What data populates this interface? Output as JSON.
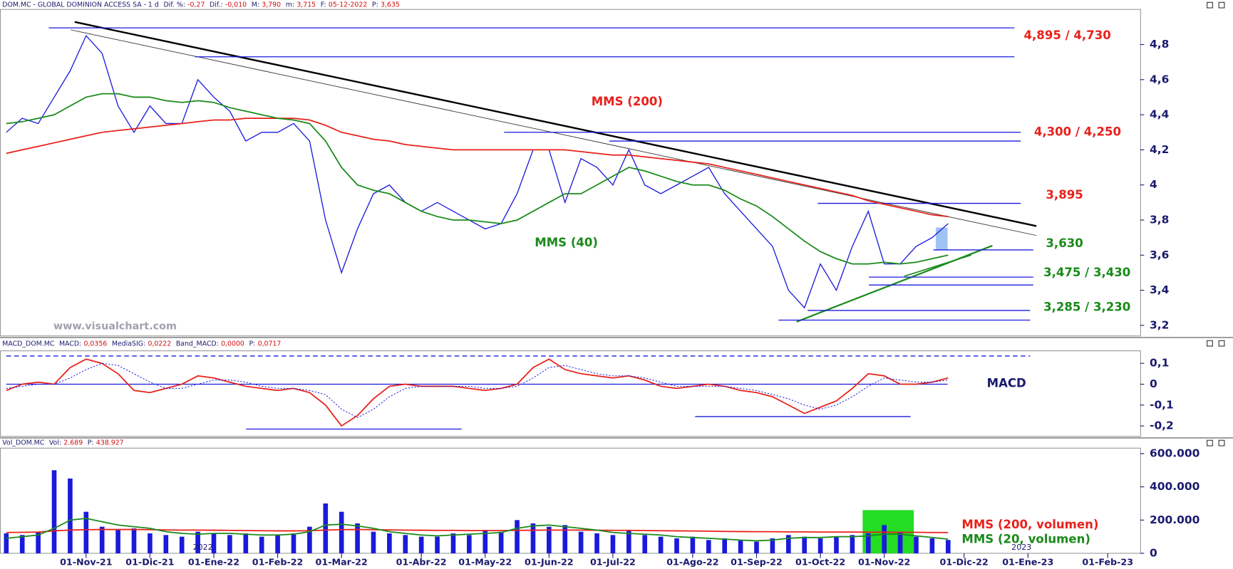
{
  "chart_data": [
    {
      "type": "line",
      "header": [
        {
          "label": "DOM.MC - GLOBAL DOMINION ACCESS SA -  1 d"
        },
        {
          "label": "Dif. %:",
          "value": "-0,27"
        },
        {
          "label": "Dif.:",
          "value": "-0,010"
        },
        {
          "label": "M:",
          "value": "3,790"
        },
        {
          "label": "m:",
          "value": "3,715"
        },
        {
          "label": "F:",
          "value": "05-12-2022"
        },
        {
          "label": "P:",
          "value": "3,635"
        }
      ],
      "values": [
        4.3,
        4.38,
        4.35,
        4.5,
        4.65,
        4.85,
        4.75,
        4.45,
        4.3,
        4.45,
        4.35,
        4.35,
        4.6,
        4.5,
        4.42,
        4.25,
        4.3,
        4.3,
        4.35,
        4.25,
        3.8,
        3.5,
        3.75,
        3.95,
        4.0,
        3.9,
        3.85,
        3.9,
        3.85,
        3.8,
        3.75,
        3.78,
        3.95,
        4.2,
        4.2,
        3.9,
        4.15,
        4.1,
        4.0,
        4.2,
        4.0,
        3.95,
        4.0,
        4.05,
        4.1,
        3.95,
        3.85,
        3.75,
        3.65,
        3.4,
        3.3,
        3.55,
        3.4,
        3.65,
        3.85,
        3.55,
        3.55,
        3.65,
        3.7,
        3.78,
        null,
        null,
        null,
        null,
        null,
        null,
        null,
        null,
        null,
        null,
        null,
        null
      ],
      "color": "#1a1adc",
      "series": [
        {
          "name": "MMS (200)",
          "color": "#e8211b",
          "values": [
            4.18,
            4.2,
            4.22,
            4.24,
            4.26,
            4.28,
            4.3,
            4.31,
            4.32,
            4.33,
            4.34,
            4.35,
            4.36,
            4.37,
            4.37,
            4.38,
            4.38,
            4.38,
            4.38,
            4.37,
            4.34,
            4.3,
            4.28,
            4.26,
            4.25,
            4.23,
            4.22,
            4.21,
            4.2,
            4.2,
            4.2,
            4.2,
            4.2,
            4.2,
            4.2,
            4.2,
            4.19,
            4.18,
            4.17,
            4.17,
            4.16,
            4.15,
            4.14,
            4.13,
            4.12,
            4.1,
            4.08,
            4.06,
            4.04,
            4.02,
            4.0,
            3.98,
            3.96,
            3.94,
            3.91,
            3.89,
            3.87,
            3.85,
            3.83,
            3.82,
            null,
            null,
            null,
            null,
            null,
            null,
            null,
            null,
            null,
            null,
            null,
            null
          ]
        },
        {
          "name": "MMS (40)",
          "color": "#1a8a1a",
          "values": [
            4.35,
            4.36,
            4.38,
            4.4,
            4.45,
            4.5,
            4.52,
            4.52,
            4.5,
            4.5,
            4.48,
            4.47,
            4.48,
            4.47,
            4.44,
            4.42,
            4.4,
            4.38,
            4.37,
            4.35,
            4.25,
            4.1,
            4.0,
            3.97,
            3.95,
            3.9,
            3.85,
            3.82,
            3.8,
            3.8,
            3.79,
            3.78,
            3.8,
            3.85,
            3.9,
            3.95,
            3.95,
            4.0,
            4.05,
            4.1,
            4.08,
            4.05,
            4.02,
            4.0,
            4.0,
            3.97,
            3.92,
            3.88,
            3.82,
            3.75,
            3.68,
            3.62,
            3.58,
            3.55,
            3.55,
            3.56,
            3.55,
            3.56,
            3.58,
            3.6,
            null,
            null,
            null,
            null,
            null,
            null,
            null,
            null,
            null,
            null,
            null,
            null
          ]
        }
      ],
      "ylim": [
        3.14,
        5.0
      ],
      "yticks": [
        {
          "value": 4.8,
          "label": "4,8"
        },
        {
          "value": 4.6,
          "label": "4,6"
        },
        {
          "value": 4.4,
          "label": "4,4"
        },
        {
          "value": 4.2,
          "label": "4,2"
        },
        4,
        {
          "value": 3.8,
          "label": "3,8"
        },
        {
          "value": 3.6,
          "label": "3,6"
        },
        {
          "value": 3.4,
          "label": "3,4"
        },
        {
          "value": 3.2,
          "label": "3,2"
        }
      ],
      "levels": [
        4.895,
        4.73,
        4.3,
        4.25,
        3.895,
        3.63,
        3.475,
        3.43,
        3.285,
        3.23
      ],
      "annotations": [
        {
          "text": "4,895 / 4,730",
          "color": "#e8211b"
        },
        {
          "text": "4,300 / 4,250",
          "color": "#e8211b"
        },
        {
          "text": "3,895",
          "color": "#e8211b"
        },
        {
          "text": "3,630",
          "color": "#1a8a1a"
        },
        {
          "text": "3,475 / 3,430",
          "color": "#1a8a1a"
        },
        {
          "text": "3,285 /  3,230",
          "color": "#1a8a1a"
        }
      ],
      "watermark": "www.visualchart.com"
    },
    {
      "type": "line",
      "header": [
        {
          "label": "MACD_DOM.MC"
        },
        {
          "label": "MACD:",
          "value": "0,0356"
        },
        {
          "label": "MediaSIG:",
          "value": "0,0222"
        },
        {
          "label": "Band_MACD:",
          "value": "0,0000"
        },
        {
          "label": "P:",
          "value": "0,0717"
        }
      ],
      "series": [
        {
          "name": "MACD",
          "color": "#e8211b",
          "values": [
            -0.03,
            0.0,
            0.01,
            0.0,
            0.08,
            0.12,
            0.1,
            0.05,
            -0.03,
            -0.04,
            -0.02,
            0.0,
            0.04,
            0.03,
            0.01,
            -0.01,
            -0.02,
            -0.03,
            -0.02,
            -0.04,
            -0.1,
            -0.2,
            -0.15,
            -0.07,
            -0.01,
            0.0,
            -0.01,
            -0.01,
            -0.01,
            -0.02,
            -0.03,
            -0.02,
            0.0,
            0.08,
            0.12,
            0.07,
            0.05,
            0.04,
            0.03,
            0.04,
            0.02,
            -0.01,
            -0.02,
            -0.01,
            0.0,
            -0.01,
            -0.03,
            -0.04,
            -0.06,
            -0.1,
            -0.14,
            -0.11,
            -0.08,
            -0.02,
            0.05,
            0.04,
            0.0,
            0.0,
            0.01,
            0.03,
            null,
            null,
            null,
            null,
            null,
            null,
            null,
            null,
            null,
            null,
            null,
            null
          ]
        },
        {
          "color": "#1a1adc",
          "dash": true,
          "values": [
            -0.02,
            -0.01,
            0.0,
            0.0,
            0.03,
            0.07,
            0.1,
            0.09,
            0.05,
            0.01,
            -0.02,
            -0.02,
            0.0,
            0.02,
            0.02,
            0.01,
            -0.01,
            -0.02,
            -0.02,
            -0.03,
            -0.05,
            -0.12,
            -0.16,
            -0.12,
            -0.06,
            -0.02,
            -0.01,
            -0.01,
            -0.01,
            -0.01,
            -0.02,
            -0.02,
            -0.01,
            0.03,
            0.08,
            0.09,
            0.07,
            0.05,
            0.04,
            0.04,
            0.03,
            0.01,
            -0.01,
            -0.01,
            -0.01,
            -0.01,
            -0.02,
            -0.03,
            -0.05,
            -0.07,
            -0.1,
            -0.12,
            -0.1,
            -0.06,
            -0.01,
            0.03,
            0.02,
            0.01,
            0.01,
            0.02,
            null,
            null,
            null,
            null,
            null,
            null,
            null,
            null,
            null,
            null,
            null,
            null
          ]
        }
      ],
      "ylim": [
        -0.25,
        0.16
      ],
      "yticks": [
        {
          "value": 0.1,
          "label": "0,1"
        },
        0,
        {
          "value": -0.1,
          "label": "-0,1"
        },
        {
          "value": -0.2,
          "label": "-0,2"
        }
      ],
      "levels": [
        0.135,
        0,
        -0.215,
        -0.155
      ]
    },
    {
      "type": "bar",
      "header": [
        {
          "label": "Vol_DOM.MC"
        },
        {
          "label": "Vol:",
          "value": "2.689"
        },
        {
          "label": "P:",
          "value": "438.927"
        }
      ],
      "categories": [
        null,
        null,
        null,
        null,
        null,
        "01-Nov-21",
        null,
        null,
        null,
        "01-Dic-21",
        null,
        null,
        null,
        "01-Ene-22",
        null,
        null,
        null,
        "01-Feb-22",
        null,
        null,
        null,
        "01-Mar-22",
        null,
        null,
        null,
        null,
        "01-Abr-22",
        null,
        null,
        null,
        "01-May-22",
        null,
        null,
        null,
        "01-Jun-22",
        null,
        null,
        null,
        "01-Jul-22",
        null,
        null,
        null,
        null,
        "01-Ago-22",
        null,
        null,
        null,
        "01-Sep-22",
        null,
        null,
        null,
        "01-Oct-22",
        null,
        null,
        null,
        "01-Nov-22",
        null,
        null,
        null,
        null,
        "01-Dic-22",
        null,
        null,
        null,
        "01-Ene-23",
        null,
        null,
        null,
        null,
        "01-Feb-23",
        null,
        null
      ],
      "values": [
        120000,
        110000,
        130000,
        500000,
        450000,
        250000,
        160000,
        140000,
        150000,
        120000,
        110000,
        100000,
        130000,
        120000,
        110000,
        120000,
        100000,
        110000,
        120000,
        160000,
        300000,
        250000,
        180000,
        130000,
        120000,
        110000,
        100000,
        100000,
        120000,
        110000,
        140000,
        130000,
        200000,
        180000,
        160000,
        170000,
        130000,
        120000,
        110000,
        140000,
        110000,
        100000,
        90000,
        100000,
        80000,
        90000,
        80000,
        70000,
        90000,
        110000,
        100000,
        90000,
        100000,
        110000,
        120000,
        170000,
        130000,
        100000,
        90000,
        80000,
        null,
        null,
        null,
        null,
        null,
        null,
        null,
        null,
        null,
        null,
        null,
        null
      ],
      "color": "#1a1adc",
      "series": [
        {
          "name": "MMS (200, volumen)",
          "color": "#e8211b",
          "values": [
            125000,
            126000,
            128000,
            135000,
            140000,
            142000,
            143000,
            143000,
            143000,
            142000,
            141000,
            140000,
            140000,
            139000,
            138000,
            137000,
            136000,
            135000,
            135000,
            136000,
            140000,
            142000,
            143000,
            142000,
            141000,
            140000,
            139000,
            138000,
            138000,
            137000,
            137000,
            137000,
            138000,
            139000,
            140000,
            140000,
            140000,
            139000,
            138000,
            138000,
            137000,
            136000,
            135000,
            134000,
            133000,
            132000,
            131000,
            130000,
            130000,
            129000,
            129000,
            128000,
            128000,
            128000,
            127000,
            127000,
            126000,
            126000,
            125000,
            125000,
            null,
            null,
            null,
            null,
            null,
            null,
            null,
            null,
            null,
            null,
            null,
            null
          ]
        },
        {
          "name": "MMS (20, volumen)",
          "color": "#1a8a1a",
          "values": [
            90000,
            100000,
            110000,
            150000,
            200000,
            210000,
            190000,
            170000,
            160000,
            150000,
            130000,
            120000,
            115000,
            120000,
            120000,
            115000,
            110000,
            110000,
            115000,
            130000,
            170000,
            175000,
            165000,
            150000,
            130000,
            120000,
            110000,
            105000,
            110000,
            115000,
            120000,
            125000,
            150000,
            165000,
            170000,
            160000,
            150000,
            140000,
            125000,
            120000,
            115000,
            110000,
            100000,
            95000,
            90000,
            85000,
            80000,
            75000,
            80000,
            90000,
            95000,
            95000,
            100000,
            100000,
            105000,
            115000,
            115000,
            105000,
            95000,
            85000,
            null,
            null,
            null,
            null,
            null,
            null,
            null,
            null,
            null,
            null,
            null,
            null
          ]
        }
      ],
      "ylim": [
        0,
        633000
      ],
      "yticks": [
        {
          "value": 600000,
          "label": "600.000"
        },
        {
          "value": 400000,
          "label": "400.000"
        },
        {
          "value": 200000,
          "label": "200.000"
        },
        0
      ],
      "year_labels": [
        "2022",
        "2023"
      ]
    }
  ]
}
